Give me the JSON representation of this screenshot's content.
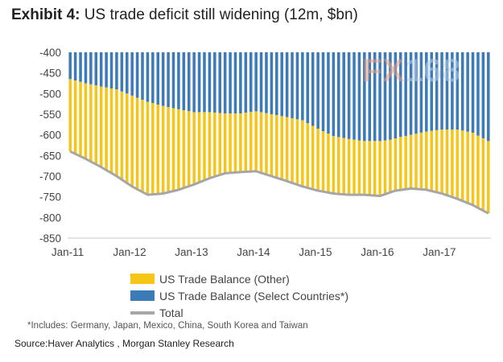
{
  "header": {
    "exhibit_label": "Exhibit 4:",
    "title": "US trade deficit still widening (12m, $bn)"
  },
  "watermark": {
    "fx": "FX",
    "num": "168"
  },
  "chart_data": {
    "type": "area",
    "title": "US trade deficit still widening (12m, $bn)",
    "x_start": "2011-01",
    "frequency": "monthly",
    "months": 82,
    "ylim": [
      -850,
      -400
    ],
    "yticks": [
      -400,
      -450,
      -500,
      -550,
      -600,
      -650,
      -700,
      -750,
      -800,
      -850
    ],
    "xticks": [
      {
        "label": "Jan-11",
        "index": 0
      },
      {
        "label": "Jan-12",
        "index": 12
      },
      {
        "label": "Jan-13",
        "index": 24
      },
      {
        "label": "Jan-14",
        "index": 36
      },
      {
        "label": "Jan-15",
        "index": 48
      },
      {
        "label": "Jan-16",
        "index": 60
      },
      {
        "label": "Jan-17",
        "index": 72
      }
    ],
    "series": [
      {
        "name": "US Trade Balance (Other)",
        "color": "#f5c518",
        "kind": "stacked-bar",
        "description": "difference between Total and Select Countries boundary"
      },
      {
        "name": "US Trade Balance (Select Countries*)",
        "color": "#3d7ab8",
        "kind": "stacked-bar",
        "boundary_anchors": [
          [
            0,
            -465
          ],
          [
            3,
            -475
          ],
          [
            6,
            -483
          ],
          [
            9,
            -490
          ],
          [
            12,
            -505
          ],
          [
            15,
            -520
          ],
          [
            18,
            -530
          ],
          [
            21,
            -538
          ],
          [
            24,
            -545
          ],
          [
            27,
            -545
          ],
          [
            30,
            -548
          ],
          [
            33,
            -548
          ],
          [
            36,
            -543
          ],
          [
            39,
            -550
          ],
          [
            42,
            -557
          ],
          [
            45,
            -565
          ],
          [
            48,
            -585
          ],
          [
            51,
            -603
          ],
          [
            54,
            -610
          ],
          [
            57,
            -615
          ],
          [
            60,
            -615
          ],
          [
            62,
            -612
          ],
          [
            64,
            -605
          ],
          [
            66,
            -600
          ],
          [
            69,
            -592
          ],
          [
            72,
            -587
          ],
          [
            75,
            -587
          ],
          [
            78,
            -595
          ],
          [
            81,
            -615
          ]
        ]
      },
      {
        "name": "Total",
        "color": "#a6a6a6",
        "kind": "line",
        "anchors": [
          [
            0,
            -640
          ],
          [
            3,
            -658
          ],
          [
            6,
            -678
          ],
          [
            9,
            -700
          ],
          [
            12,
            -725
          ],
          [
            15,
            -745
          ],
          [
            18,
            -742
          ],
          [
            21,
            -733
          ],
          [
            24,
            -720
          ],
          [
            27,
            -705
          ],
          [
            30,
            -693
          ],
          [
            33,
            -690
          ],
          [
            36,
            -688
          ],
          [
            39,
            -700
          ],
          [
            42,
            -712
          ],
          [
            45,
            -725
          ],
          [
            48,
            -735
          ],
          [
            51,
            -742
          ],
          [
            54,
            -745
          ],
          [
            57,
            -745
          ],
          [
            60,
            -748
          ],
          [
            63,
            -735
          ],
          [
            66,
            -730
          ],
          [
            69,
            -733
          ],
          [
            72,
            -742
          ],
          [
            75,
            -755
          ],
          [
            78,
            -770
          ],
          [
            81,
            -790
          ]
        ]
      }
    ],
    "legend": [
      {
        "label": "US Trade Balance (Other)",
        "color": "#f5c518",
        "kind": "box"
      },
      {
        "label": "US Trade Balance (Select Countries*)",
        "color": "#3d7ab8",
        "kind": "box"
      },
      {
        "label": "Total",
        "color": "#a6a6a6",
        "kind": "line"
      }
    ]
  },
  "footnote": "*Includes: Germany, Japan, Mexico, China, South Korea and Taiwan",
  "source": "Source:Haver Analytics , Morgan Stanley Research"
}
